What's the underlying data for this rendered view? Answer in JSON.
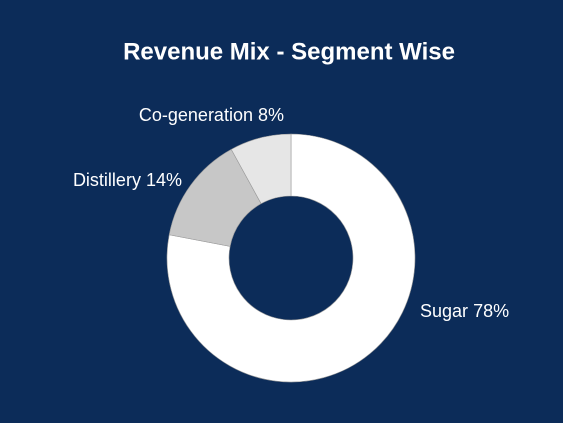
{
  "chart_data": {
    "type": "donut",
    "title": "Revenue Mix - Segment Wise",
    "categories": [
      "Sugar",
      "Distillery",
      "Co-generation"
    ],
    "values": [
      78,
      14,
      8
    ],
    "value_labels": [
      "78%",
      "14%",
      "8%"
    ],
    "colors": [
      "#ffffff",
      "#c7c7c7",
      "#e6e6e6"
    ]
  }
}
